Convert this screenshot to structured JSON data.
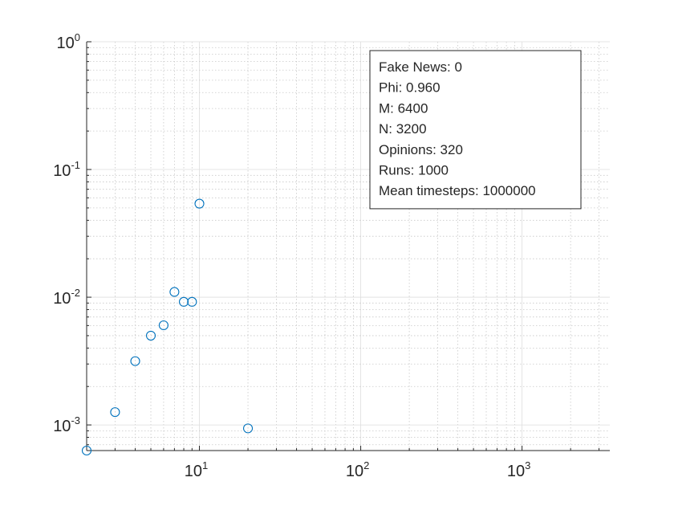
{
  "chart_data": {
    "type": "scatter",
    "x_scale": "log",
    "y_scale": "log",
    "xlim": [
      2,
      3500
    ],
    "ylim": [
      0.00063,
      1
    ],
    "grid": true,
    "minor_grid": true,
    "marker": "circle",
    "marker_color": "#0072BD",
    "x_ticks": [
      {
        "value": 10,
        "base": "10",
        "exp": "1"
      },
      {
        "value": 100,
        "base": "10",
        "exp": "2"
      },
      {
        "value": 1000,
        "base": "10",
        "exp": "3"
      }
    ],
    "y_ticks": [
      {
        "value": 0.001,
        "base": "10",
        "exp": "-3"
      },
      {
        "value": 0.01,
        "base": "10",
        "exp": "-2"
      },
      {
        "value": 0.1,
        "base": "10",
        "exp": "-1"
      },
      {
        "value": 1,
        "base": "10",
        "exp": "0"
      }
    ],
    "points": [
      {
        "x": 2,
        "y": 0.00063
      },
      {
        "x": 3,
        "y": 0.00126
      },
      {
        "x": 4,
        "y": 0.00316
      },
      {
        "x": 5,
        "y": 0.005
      },
      {
        "x": 6,
        "y": 0.00603
      },
      {
        "x": 7,
        "y": 0.011
      },
      {
        "x": 8,
        "y": 0.0092
      },
      {
        "x": 9,
        "y": 0.0092
      },
      {
        "x": 10,
        "y": 0.054
      },
      {
        "x": 20,
        "y": 0.00094
      }
    ],
    "annotation": {
      "placement": "top-right",
      "lines": [
        "Fake News: 0",
        "Phi: 0.960",
        "M: 6400",
        "N: 3200",
        "Opinions: 320",
        "Runs: 1000",
        "Mean timesteps: 1000000"
      ]
    }
  }
}
